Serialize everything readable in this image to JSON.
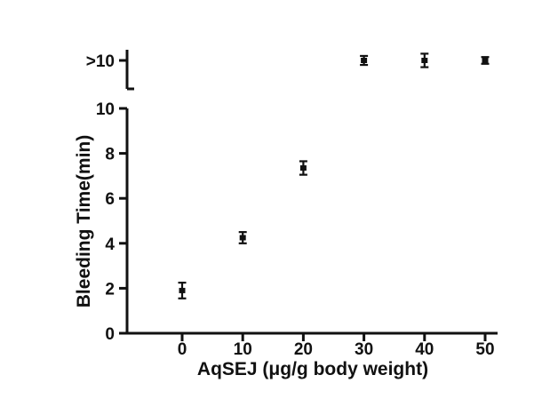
{
  "chart_data": {
    "type": "scatter",
    "title": "",
    "xlabel": "AqSEJ (μg/g body weight)",
    "ylabel": "Bleeding Time(min)",
    "x_ticks": [
      0,
      10,
      20,
      30,
      40,
      50
    ],
    "y_ticks": [
      0,
      2,
      4,
      6,
      8,
      10
    ],
    "y_axis_break_label": ">10",
    "xlim": [
      -9,
      52
    ],
    "ylim": [
      0,
      10
    ],
    "grid": false,
    "legend": false,
    "marker": "filled-square-with-error-bars",
    "color": "#111111",
    "points": [
      {
        "x": 0,
        "y": 1.9,
        "err": 0.35,
        "above_break": false
      },
      {
        "x": 10,
        "y": 4.25,
        "err": 0.25,
        "above_break": false
      },
      {
        "x": 20,
        "y": 7.35,
        "err": 0.3,
        "above_break": false
      },
      {
        "x": 30,
        "y": ">10",
        "err": 0.2,
        "above_break": true
      },
      {
        "x": 40,
        "y": ">10",
        "err": 0.3,
        "above_break": true
      },
      {
        "x": 50,
        "y": ">10",
        "err": 0.15,
        "above_break": true
      }
    ]
  }
}
